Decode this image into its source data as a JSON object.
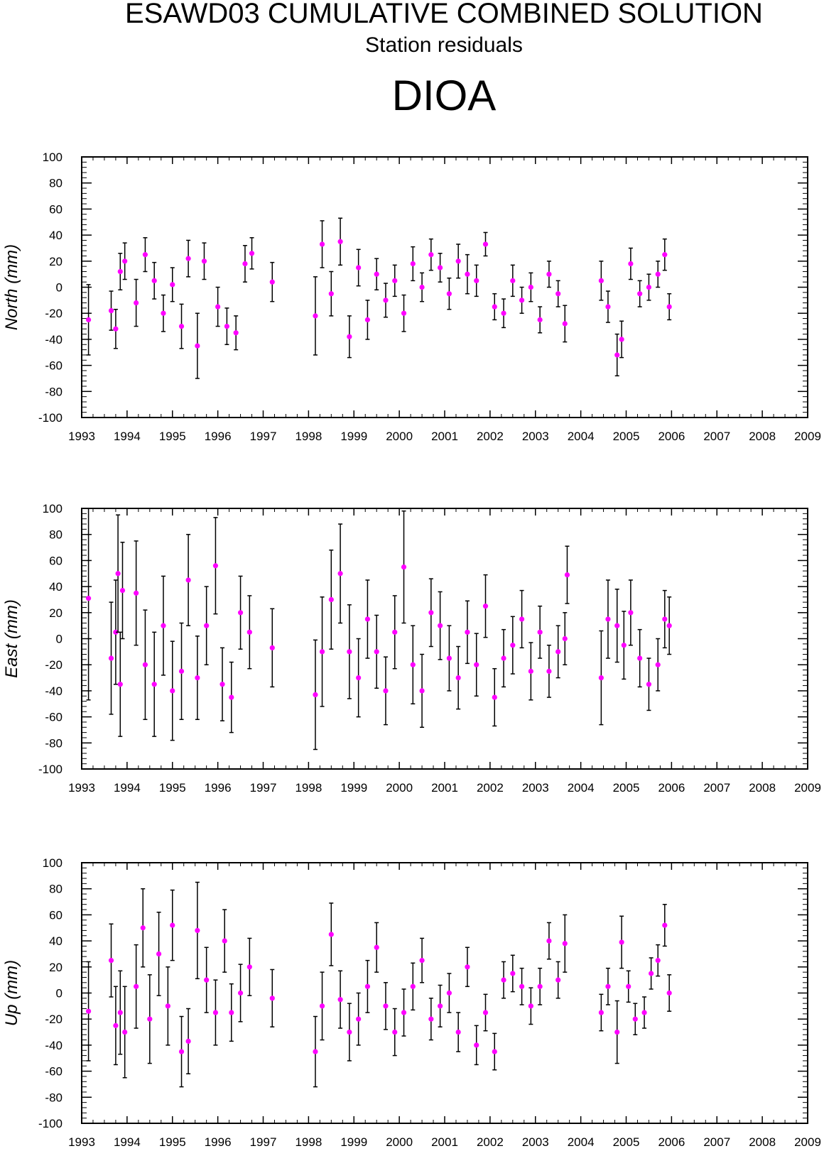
{
  "header": {
    "title": "ESAWD03 CUMULATIVE COMBINED SOLUTION",
    "subtitle": "Station residuals",
    "station": "DIOA"
  },
  "colors": {
    "marker": "#ff00ff",
    "errorbar": "#000000",
    "axis": "#000000"
  },
  "chart_data": [
    {
      "type": "scatter",
      "ylabel": "North (mm)",
      "xlim": [
        1993,
        2009
      ],
      "ylim": [
        -100,
        100
      ],
      "x_ticks": [
        "1993",
        "1994",
        "1995",
        "1996",
        "1997",
        "1998",
        "1999",
        "2000",
        "2001",
        "2002",
        "2003",
        "2004",
        "2005",
        "2006",
        "2007",
        "2008",
        "2009"
      ],
      "y_ticks": [
        "100",
        "80",
        "60",
        "40",
        "20",
        "0",
        "-20",
        "-40",
        "-60",
        "-80",
        "-100"
      ],
      "series": [
        {
          "x": [
            1993.15,
            1993.65,
            1993.75,
            1993.85,
            1993.95,
            1994.2,
            1994.4,
            1994.6,
            1994.8,
            1995.0,
            1995.2,
            1995.35,
            1995.55,
            1995.7,
            1996.0,
            1996.2,
            1996.4,
            1996.6,
            1996.75,
            1997.2,
            1998.15,
            1998.3,
            1998.5,
            1998.7,
            1998.9,
            1999.1,
            1999.3,
            1999.5,
            1999.7,
            1999.9,
            2000.1,
            2000.3,
            2000.5,
            2000.7,
            2000.9,
            2001.1,
            2001.3,
            2001.5,
            2001.7,
            2001.9,
            2002.1,
            2002.3,
            2002.5,
            2002.7,
            2002.9,
            2003.1,
            2003.3,
            2003.5,
            2003.65,
            2004.45,
            2004.6,
            2004.8,
            2004.9,
            2005.1,
            2005.3,
            2005.5,
            2005.7,
            2005.85,
            2005.95
          ],
          "y": [
            -25,
            -18,
            -32,
            12,
            20,
            -12,
            25,
            5,
            -20,
            2,
            -30,
            22,
            -45,
            20,
            -15,
            -30,
            -35,
            18,
            26,
            4,
            -22,
            33,
            -5,
            35,
            -38,
            15,
            -25,
            10,
            -10,
            5,
            -20,
            18,
            0,
            25,
            15,
            -5,
            20,
            10,
            5,
            33,
            -15,
            -20,
            5,
            -10,
            0,
            -25,
            10,
            -5,
            -28,
            5,
            -15,
            -52,
            -40,
            18,
            -5,
            0,
            10,
            25,
            -15
          ],
          "err": [
            27,
            15,
            15,
            14,
            14,
            18,
            13,
            14,
            14,
            13,
            17,
            14,
            25,
            14,
            15,
            14,
            13,
            14,
            12,
            15,
            30,
            18,
            17,
            18,
            16,
            14,
            15,
            12,
            13,
            12,
            14,
            13,
            11,
            12,
            11,
            12,
            13,
            15,
            12,
            9,
            10,
            11,
            12,
            10,
            11,
            10,
            10,
            10,
            14,
            15,
            12,
            16,
            14,
            12,
            10,
            10,
            10,
            12,
            10
          ]
        }
      ]
    },
    {
      "type": "scatter",
      "ylabel": "East (mm)",
      "xlim": [
        1993,
        2009
      ],
      "ylim": [
        -100,
        100
      ],
      "x_ticks": [
        "1993",
        "1994",
        "1995",
        "1996",
        "1997",
        "1998",
        "1999",
        "2000",
        "2001",
        "2002",
        "2003",
        "2004",
        "2005",
        "2006",
        "2007",
        "2008",
        "2009"
      ],
      "y_ticks": [
        "100",
        "80",
        "60",
        "40",
        "20",
        "0",
        "-20",
        "-40",
        "-60",
        "-80",
        "-100"
      ],
      "series": [
        {
          "x": [
            1993.15,
            1993.65,
            1993.75,
            1993.8,
            1993.85,
            1993.9,
            1994.2,
            1994.4,
            1994.6,
            1994.8,
            1995.0,
            1995.2,
            1995.35,
            1995.55,
            1995.75,
            1995.95,
            1996.1,
            1996.3,
            1996.5,
            1996.7,
            1997.2,
            1998.15,
            1998.3,
            1998.5,
            1998.7,
            1998.9,
            1999.1,
            1999.3,
            1999.5,
            1999.7,
            1999.9,
            2000.1,
            2000.3,
            2000.5,
            2000.7,
            2000.9,
            2001.1,
            2001.3,
            2001.5,
            2001.7,
            2001.9,
            2002.1,
            2002.3,
            2002.5,
            2002.7,
            2002.9,
            2003.1,
            2003.3,
            2003.5,
            2003.65,
            2003.7,
            2004.45,
            2004.6,
            2004.8,
            2004.95,
            2005.1,
            2005.3,
            2005.5,
            2005.7,
            2005.85,
            2005.95
          ],
          "y": [
            31,
            -15,
            5,
            50,
            -35,
            37,
            35,
            -20,
            -35,
            10,
            -40,
            -25,
            45,
            -30,
            10,
            56,
            -35,
            -45,
            20,
            5,
            -7,
            -43,
            -10,
            30,
            50,
            -10,
            -30,
            15,
            -10,
            -40,
            5,
            55,
            -20,
            -40,
            20,
            10,
            -15,
            -30,
            5,
            -20,
            25,
            -45,
            -15,
            -5,
            15,
            -25,
            5,
            -25,
            -10,
            0,
            49,
            -30,
            15,
            10,
            -5,
            20,
            -15,
            -35,
            -20,
            15,
            10
          ],
          "err": [
            78,
            43,
            40,
            45,
            40,
            37,
            40,
            42,
            40,
            38,
            38,
            37,
            35,
            32,
            30,
            37,
            28,
            27,
            28,
            28,
            30,
            42,
            42,
            38,
            38,
            36,
            30,
            30,
            28,
            26,
            28,
            43,
            30,
            28,
            26,
            26,
            25,
            24,
            24,
            24,
            24,
            22,
            22,
            22,
            22,
            22,
            20,
            20,
            20,
            20,
            22,
            36,
            30,
            28,
            26,
            25,
            22,
            20,
            20,
            22,
            22
          ]
        }
      ]
    },
    {
      "type": "scatter",
      "ylabel": "Up (mm)",
      "xlim": [
        1993,
        2009
      ],
      "ylim": [
        -100,
        100
      ],
      "x_ticks": [
        "1993",
        "1994",
        "1995",
        "1996",
        "1997",
        "1998",
        "1999",
        "2000",
        "2001",
        "2002",
        "2003",
        "2004",
        "2005",
        "2006",
        "2007",
        "2008",
        "2009"
      ],
      "y_ticks": [
        "100",
        "80",
        "60",
        "40",
        "20",
        "0",
        "-20",
        "-40",
        "-60",
        "-80",
        "-100"
      ],
      "series": [
        {
          "x": [
            1993.15,
            1993.65,
            1993.75,
            1993.85,
            1993.95,
            1994.2,
            1994.35,
            1994.5,
            1994.7,
            1994.9,
            1995.0,
            1995.2,
            1995.35,
            1995.55,
            1995.75,
            1995.95,
            1996.15,
            1996.3,
            1996.5,
            1996.7,
            1997.2,
            1998.15,
            1998.3,
            1998.5,
            1998.7,
            1998.9,
            1999.1,
            1999.3,
            1999.5,
            1999.7,
            1999.9,
            2000.1,
            2000.3,
            2000.5,
            2000.7,
            2000.9,
            2001.1,
            2001.3,
            2001.5,
            2001.7,
            2001.9,
            2002.1,
            2002.3,
            2002.5,
            2002.7,
            2002.9,
            2003.1,
            2003.3,
            2003.5,
            2003.65,
            2004.45,
            2004.6,
            2004.8,
            2004.9,
            2005.05,
            2005.2,
            2005.4,
            2005.55,
            2005.7,
            2005.85,
            2005.95
          ],
          "y": [
            -14,
            25,
            -25,
            -15,
            -30,
            5,
            50,
            -20,
            30,
            -10,
            52,
            -45,
            -37,
            48,
            10,
            -15,
            40,
            -15,
            0,
            20,
            -4,
            -45,
            -10,
            45,
            -5,
            -30,
            -20,
            5,
            35,
            -10,
            -30,
            -15,
            5,
            25,
            -20,
            -10,
            0,
            -30,
            20,
            -40,
            -15,
            -45,
            10,
            15,
            5,
            -10,
            5,
            40,
            10,
            38,
            -15,
            5,
            -30,
            39,
            5,
            -20,
            -15,
            15,
            25,
            52,
            0
          ],
          "err": [
            38,
            28,
            30,
            32,
            35,
            32,
            30,
            34,
            32,
            30,
            27,
            27,
            25,
            37,
            25,
            25,
            24,
            22,
            22,
            22,
            22,
            27,
            26,
            24,
            22,
            22,
            20,
            20,
            19,
            18,
            18,
            18,
            18,
            17,
            16,
            16,
            15,
            15,
            15,
            15,
            14,
            14,
            14,
            14,
            14,
            14,
            14,
            14,
            14,
            22,
            14,
            14,
            24,
            20,
            12,
            12,
            12,
            12,
            12,
            16,
            14
          ]
        }
      ]
    }
  ]
}
